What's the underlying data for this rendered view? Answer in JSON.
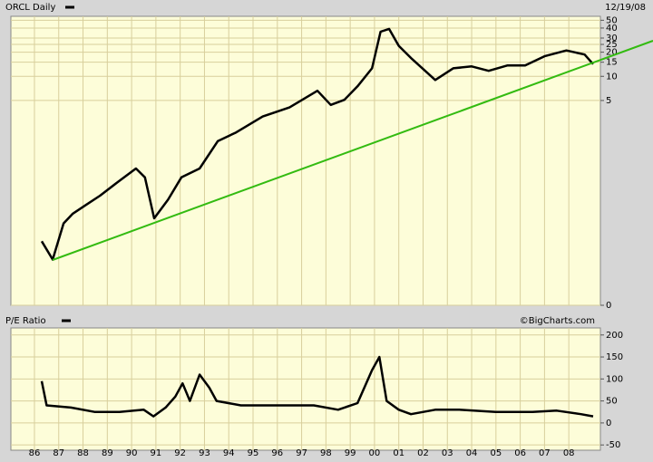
{
  "chart_data": [
    {
      "type": "line",
      "title": "ORCL Daily",
      "date": "12/19/08",
      "log_scale": true,
      "grid": true,
      "xlim": [
        1985.03,
        2009.3
      ],
      "ylim": [
        0.014,
        56
      ],
      "yticks": [
        {
          "value": 0.014,
          "label": "0"
        },
        5,
        10,
        15,
        20,
        25,
        30,
        40,
        50
      ],
      "series": [
        {
          "name": "ORCL",
          "color": "#000000",
          "x": [
            1986.3,
            1986.75,
            1987.2,
            1987.57,
            1988.13,
            1988.7,
            1989.43,
            1990.18,
            1990.55,
            1990.93,
            1991.5,
            1992.05,
            1992.8,
            1993.55,
            1994.3,
            1995.4,
            1996.5,
            1997.65,
            1998.2,
            1998.76,
            1999.3,
            1999.9,
            2000.25,
            2000.6,
            2001.0,
            2001.55,
            2002.5,
            2003.24,
            2004.0,
            2004.7,
            2005.48,
            2006.2,
            2007.0,
            2007.9,
            2008.65,
            2009.0
          ],
          "values": [
            0.088,
            0.052,
            0.147,
            0.193,
            0.25,
            0.325,
            0.48,
            0.71,
            0.55,
            0.17,
            0.29,
            0.55,
            0.71,
            1.56,
            2.0,
            3.16,
            4.1,
            6.6,
            4.4,
            5.1,
            7.5,
            12.6,
            36,
            39,
            24,
            16.4,
            9.0,
            12.6,
            13.3,
            11.7,
            13.7,
            13.7,
            17.8,
            21,
            18.7,
            14.2
          ]
        }
      ]
    },
    {
      "type": "line",
      "title": "P/E Ratio",
      "source": "©BigCharts.com",
      "log_scale": false,
      "grid": true,
      "xlim": [
        1985.03,
        2009.3
      ],
      "xticks": [
        {
          "value": 1986,
          "label": "86"
        },
        {
          "value": 1987,
          "label": "87"
        },
        {
          "value": 1988,
          "label": "88"
        },
        {
          "value": 1989,
          "label": "89"
        },
        {
          "value": 1990,
          "label": "90"
        },
        {
          "value": 1991,
          "label": "91"
        },
        {
          "value": 1992,
          "label": "92"
        },
        {
          "value": 1993,
          "label": "93"
        },
        {
          "value": 1994,
          "label": "94"
        },
        {
          "value": 1995,
          "label": "95"
        },
        {
          "value": 1996,
          "label": "96"
        },
        {
          "value": 1997,
          "label": "97"
        },
        {
          "value": 1998,
          "label": "98"
        },
        {
          "value": 1999,
          "label": "99"
        },
        {
          "value": 2000,
          "label": "00"
        },
        {
          "value": 2001,
          "label": "01"
        },
        {
          "value": 2002,
          "label": "02"
        },
        {
          "value": 2003,
          "label": "03"
        },
        {
          "value": 2004,
          "label": "04"
        },
        {
          "value": 2005,
          "label": "05"
        },
        {
          "value": 2006,
          "label": "06"
        },
        {
          "value": 2007,
          "label": "07"
        },
        {
          "value": 2008,
          "label": "08"
        }
      ],
      "ylim": [
        -62,
        216
      ],
      "yticks": [
        -50,
        0,
        50,
        100,
        150,
        200
      ],
      "series": [
        {
          "name": "P/E Ratio",
          "color": "#000000",
          "x": [
            1986.3,
            1986.5,
            1987.5,
            1988.5,
            1989.5,
            1990.5,
            1990.9,
            1991.4,
            1991.8,
            1992.1,
            1992.4,
            1992.8,
            1993.2,
            1993.5,
            1994.5,
            1996,
            1997.5,
            1998.5,
            1999.3,
            1999.9,
            2000.2,
            2000.5,
            2001,
            2001.5,
            2002.5,
            2003.5,
            2005,
            2006.5,
            2007.5,
            2008.5,
            2009
          ],
          "values": [
            95,
            40,
            35,
            25,
            25,
            30,
            15,
            35,
            60,
            90,
            50,
            110,
            80,
            50,
            40,
            40,
            40,
            30,
            45,
            120,
            150,
            50,
            30,
            20,
            30,
            30,
            25,
            25,
            28,
            20,
            15
          ]
        }
      ]
    }
  ]
}
